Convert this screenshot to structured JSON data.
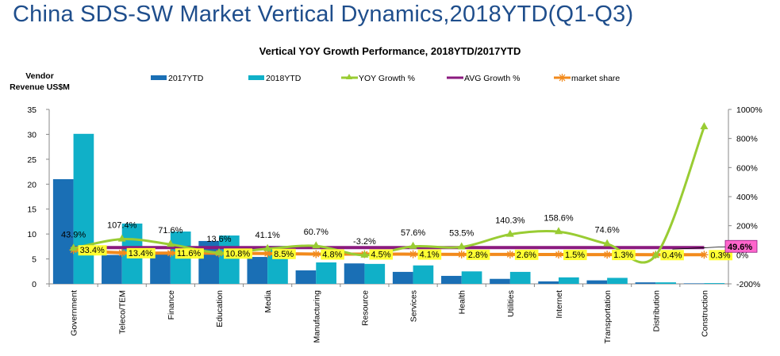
{
  "page": {
    "title": "China SDS-SW Market Vertical Dynamics,2018YTD(Q1-Q3)"
  },
  "colors": {
    "title": "#1f4e8c",
    "bar_2017": "#1a6fb5",
    "bar_2018": "#10b0c8",
    "yoy_line": "#99cc33",
    "avg_line": "#8b1a7f",
    "share_line": "#f28a1c",
    "share_label_bg": "#ffff33",
    "avg_label_bg": "#ff66cc"
  },
  "chart_data": {
    "type": "bar",
    "title": "Vertical YOY Growth Performance, 2018YTD/2017YTD",
    "ylabel": "Vendor Revenue US$M",
    "y2label": "",
    "xlabel": "",
    "ylim": [
      0,
      35
    ],
    "yticks": [
      "0",
      "5",
      "10",
      "15",
      "20",
      "25",
      "30",
      "35"
    ],
    "y2lim": [
      -200,
      1000
    ],
    "y2ticks": [
      "-200%",
      "0%",
      "200%",
      "400%",
      "600%",
      "800%",
      "1000%"
    ],
    "legend_position": "top",
    "grid": false,
    "categories": [
      "Government",
      "Teleco/TEM",
      "Finance",
      "Education",
      "Media",
      "Manufacturing",
      "Resource",
      "Services",
      "Health",
      "Utilities",
      "Internet",
      "Transportation",
      "Distribution",
      "Construction"
    ],
    "series": [
      {
        "name": "2017YTD",
        "type": "bar",
        "axis": "left",
        "values": [
          21.0,
          5.8,
          6.0,
          8.6,
          5.4,
          2.7,
          4.1,
          2.4,
          1.6,
          1.0,
          0.5,
          0.7,
          0.3,
          0.1
        ]
      },
      {
        "name": "2018YTD",
        "type": "bar",
        "axis": "left",
        "values": [
          30.1,
          12.1,
          10.5,
          9.7,
          7.6,
          4.3,
          4.0,
          3.7,
          2.5,
          2.4,
          1.3,
          1.2,
          0.3,
          0.15
        ]
      },
      {
        "name": "YOY Growth %",
        "type": "line",
        "axis": "right",
        "values": [
          43.9,
          107.4,
          71.6,
          13.6,
          41.1,
          60.7,
          -3.2,
          57.6,
          53.5,
          140.3,
          158.6,
          74.6,
          -5,
          880
        ],
        "labels": [
          "43.9%",
          "107.4%",
          "71.6%",
          "13.6%",
          "41.1%",
          "60.7%",
          "-3.2%",
          "57.6%",
          "53.5%",
          "140.3%",
          "158.6%",
          "74.6%",
          "",
          ""
        ]
      },
      {
        "name": "AVG Growth %",
        "type": "line",
        "axis": "right",
        "values": [
          49.6,
          49.6,
          49.6,
          49.6,
          49.6,
          49.6,
          49.6,
          49.6,
          49.6,
          49.6,
          49.6,
          49.6,
          49.6,
          49.6
        ],
        "label": "49.6%"
      },
      {
        "name": "market share",
        "type": "line",
        "axis": "right",
        "values": [
          33.4,
          13.4,
          11.6,
          10.8,
          8.5,
          4.8,
          4.5,
          4.1,
          2.8,
          2.6,
          1.5,
          1.3,
          0.4,
          0.3
        ],
        "labels": [
          "33.4%",
          "13.4%",
          "11.6%",
          "10.8%",
          "8.5%",
          "4.8%",
          "4.5%",
          "4.1%",
          "2.8%",
          "2.6%",
          "1.5%",
          "1.3%",
          "0.4%",
          "0.3%"
        ]
      }
    ]
  }
}
